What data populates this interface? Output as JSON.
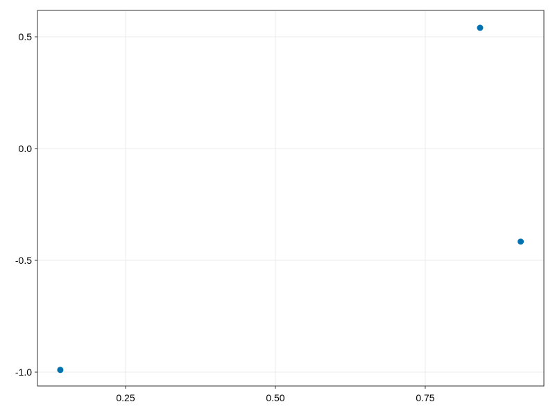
{
  "chart_data": {
    "type": "scatter",
    "title": "",
    "xlabel": "",
    "ylabel": "",
    "x": [
      0.8415,
      0.9093,
      0.1411
    ],
    "y": [
      0.5403,
      -0.4161,
      -0.99
    ],
    "xlim": [
      0.103,
      0.948
    ],
    "ylim": [
      -1.062,
      0.618
    ],
    "xticks": [
      0.25,
      0.5,
      0.75
    ],
    "xtick_labels": [
      "0.25",
      "0.50",
      "0.75"
    ],
    "yticks": [
      -1.0,
      -0.5,
      0.0,
      0.5
    ],
    "ytick_labels": [
      "-1.0",
      "-0.5",
      "0.0",
      "0.5"
    ],
    "grid": true,
    "marker_color": "#0072b2",
    "grid_color": "#ebebeb",
    "frame_color": "#333333"
  }
}
